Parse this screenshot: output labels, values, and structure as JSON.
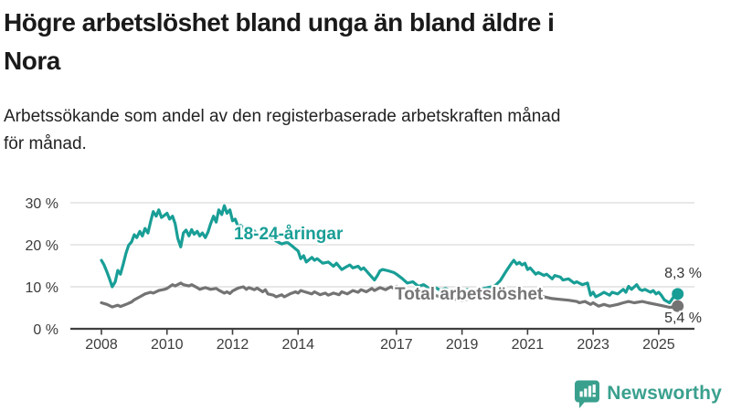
{
  "header": {
    "title_lines": [
      "Högre arbetslöshet bland unga än bland äldre i",
      "Nora"
    ],
    "subtitle_lines": [
      "Arbetssökande som andel av den registerbaserade arbetskraften månad",
      "för månad."
    ]
  },
  "chart_data": {
    "type": "line",
    "title": "Högre arbetslöshet bland unga än bland äldre i Nora",
    "subtitle": "Arbetssökande som andel av den registerbaserade arbetskraften månad för månad.",
    "grid": "horizontal-only",
    "legend_position": "inline-labels",
    "x_axis": {
      "unit": "year-month",
      "range": [
        2007.9,
        2026.05
      ],
      "ticks": [
        {
          "value": 2008,
          "label": "2008"
        },
        {
          "value": 2010,
          "label": "2010"
        },
        {
          "value": 2012,
          "label": "2012"
        },
        {
          "value": 2014,
          "label": "2014"
        },
        {
          "value": 2017,
          "label": "2017"
        },
        {
          "value": 2019,
          "label": "2019"
        },
        {
          "value": 2021,
          "label": "2021"
        },
        {
          "value": 2023,
          "label": "2023"
        },
        {
          "value": 2025,
          "label": "2025"
        }
      ]
    },
    "y_axis": {
      "unit": "%",
      "range": [
        0,
        30
      ],
      "ticks": [
        {
          "value": 0,
          "label": "0 %"
        },
        {
          "value": 10,
          "label": "10 %"
        },
        {
          "value": 20,
          "label": "20 %"
        },
        {
          "value": 30,
          "label": "30 %"
        }
      ]
    },
    "series": [
      {
        "name": "18-24-åringar",
        "color": "#189e96",
        "end_value": 8.3,
        "end_label": "8,3 %",
        "points": [
          [
            2008.0,
            16.3
          ],
          [
            2008.08,
            15.2
          ],
          [
            2008.17,
            13.5
          ],
          [
            2008.25,
            11.8
          ],
          [
            2008.33,
            10.0
          ],
          [
            2008.42,
            11.2
          ],
          [
            2008.5,
            13.9
          ],
          [
            2008.58,
            13.0
          ],
          [
            2008.67,
            15.5
          ],
          [
            2008.75,
            18.0
          ],
          [
            2008.83,
            19.9
          ],
          [
            2008.92,
            20.7
          ],
          [
            2009.0,
            22.4
          ],
          [
            2009.08,
            21.7
          ],
          [
            2009.17,
            23.2
          ],
          [
            2009.25,
            22.1
          ],
          [
            2009.33,
            23.9
          ],
          [
            2009.42,
            22.8
          ],
          [
            2009.5,
            25.5
          ],
          [
            2009.58,
            27.9
          ],
          [
            2009.67,
            26.8
          ],
          [
            2009.75,
            28.3
          ],
          [
            2009.83,
            26.5
          ],
          [
            2009.92,
            27.0
          ],
          [
            2010.0,
            27.5
          ],
          [
            2010.08,
            26.1
          ],
          [
            2010.17,
            26.8
          ],
          [
            2010.25,
            25.0
          ],
          [
            2010.33,
            21.5
          ],
          [
            2010.42,
            19.5
          ],
          [
            2010.5,
            22.8
          ],
          [
            2010.58,
            23.5
          ],
          [
            2010.67,
            22.1
          ],
          [
            2010.75,
            23.6
          ],
          [
            2010.83,
            22.5
          ],
          [
            2010.92,
            23.2
          ],
          [
            2011.0,
            22.1
          ],
          [
            2011.08,
            22.8
          ],
          [
            2011.17,
            21.7
          ],
          [
            2011.25,
            23.0
          ],
          [
            2011.33,
            25.0
          ],
          [
            2011.42,
            26.8
          ],
          [
            2011.5,
            25.4
          ],
          [
            2011.58,
            28.3
          ],
          [
            2011.67,
            27.2
          ],
          [
            2011.75,
            29.3
          ],
          [
            2011.83,
            27.5
          ],
          [
            2011.92,
            28.3
          ],
          [
            2012.0,
            25.7
          ],
          [
            2012.08,
            26.1
          ],
          [
            2012.17,
            24.3
          ],
          [
            2012.25,
            24.6
          ],
          [
            2012.33,
            24.0
          ],
          [
            2012.42,
            23.4
          ],
          [
            2012.5,
            23.8
          ],
          [
            2012.58,
            22.9
          ],
          [
            2012.67,
            23.3
          ],
          [
            2012.75,
            22.4
          ],
          [
            2012.83,
            22.8
          ],
          [
            2012.92,
            21.9
          ],
          [
            2013.0,
            21.3
          ],
          [
            2013.17,
            21.8
          ],
          [
            2013.33,
            20.9
          ],
          [
            2013.5,
            20.2
          ],
          [
            2013.67,
            20.6
          ],
          [
            2013.83,
            19.6
          ],
          [
            2014.0,
            18.5
          ],
          [
            2014.08,
            16.7
          ],
          [
            2014.17,
            17.4
          ],
          [
            2014.25,
            15.9
          ],
          [
            2014.42,
            17.0
          ],
          [
            2014.5,
            16.3
          ],
          [
            2014.58,
            16.7
          ],
          [
            2014.75,
            15.6
          ],
          [
            2014.92,
            15.9
          ],
          [
            2015.08,
            14.9
          ],
          [
            2015.17,
            15.6
          ],
          [
            2015.33,
            14.1
          ],
          [
            2015.5,
            14.9
          ],
          [
            2015.58,
            15.2
          ],
          [
            2015.67,
            14.5
          ],
          [
            2015.83,
            14.9
          ],
          [
            2015.92,
            14.1
          ],
          [
            2016.0,
            14.5
          ],
          [
            2016.08,
            13.8
          ],
          [
            2016.17,
            13.0
          ],
          [
            2016.33,
            11.6
          ],
          [
            2016.42,
            12.7
          ],
          [
            2016.5,
            13.8
          ],
          [
            2016.58,
            14.1
          ],
          [
            2016.75,
            13.8
          ],
          [
            2016.92,
            13.4
          ],
          [
            2017.0,
            13.0
          ],
          [
            2017.17,
            12.0
          ],
          [
            2017.33,
            10.9
          ],
          [
            2017.5,
            11.2
          ],
          [
            2017.67,
            10.1
          ],
          [
            2017.83,
            10.5
          ],
          [
            2018.0,
            9.6
          ],
          [
            2018.17,
            9.9
          ],
          [
            2018.33,
            9.2
          ],
          [
            2018.5,
            9.6
          ],
          [
            2018.67,
            8.9
          ],
          [
            2018.83,
            9.3
          ],
          [
            2019.0,
            9.0
          ],
          [
            2019.17,
            9.4
          ],
          [
            2019.33,
            8.8
          ],
          [
            2019.5,
            9.2
          ],
          [
            2019.67,
            9.6
          ],
          [
            2019.83,
            9.9
          ],
          [
            2020.0,
            10.2
          ],
          [
            2020.17,
            11.5
          ],
          [
            2020.33,
            13.5
          ],
          [
            2020.5,
            15.5
          ],
          [
            2020.58,
            16.3
          ],
          [
            2020.67,
            15.4
          ],
          [
            2020.75,
            15.8
          ],
          [
            2020.83,
            15.2
          ],
          [
            2020.92,
            15.6
          ],
          [
            2021.0,
            14.1
          ],
          [
            2021.08,
            14.5
          ],
          [
            2021.25,
            13.0
          ],
          [
            2021.33,
            13.4
          ],
          [
            2021.5,
            12.7
          ],
          [
            2021.58,
            13.0
          ],
          [
            2021.75,
            11.9
          ],
          [
            2021.83,
            12.7
          ],
          [
            2022.0,
            12.3
          ],
          [
            2022.08,
            11.6
          ],
          [
            2022.25,
            11.9
          ],
          [
            2022.42,
            10.9
          ],
          [
            2022.5,
            11.2
          ],
          [
            2022.67,
            10.5
          ],
          [
            2022.83,
            10.9
          ],
          [
            2022.92,
            8.0
          ],
          [
            2023.0,
            8.7
          ],
          [
            2023.08,
            7.6
          ],
          [
            2023.25,
            8.3
          ],
          [
            2023.33,
            8.7
          ],
          [
            2023.5,
            8.0
          ],
          [
            2023.58,
            8.7
          ],
          [
            2023.75,
            8.3
          ],
          [
            2023.92,
            9.4
          ],
          [
            2024.0,
            8.7
          ],
          [
            2024.08,
            10.1
          ],
          [
            2024.17,
            9.4
          ],
          [
            2024.33,
            10.5
          ],
          [
            2024.42,
            9.4
          ],
          [
            2024.5,
            9.1
          ],
          [
            2024.58,
            9.4
          ],
          [
            2024.75,
            8.7
          ],
          [
            2024.83,
            9.1
          ],
          [
            2024.92,
            8.3
          ],
          [
            2025.0,
            8.7
          ],
          [
            2025.08,
            8.0
          ],
          [
            2025.17,
            6.9
          ],
          [
            2025.33,
            6.2
          ],
          [
            2025.42,
            7.2
          ],
          [
            2025.5,
            8.0
          ],
          [
            2025.58,
            8.3
          ]
        ]
      },
      {
        "name": "Total arbetslöshet",
        "color": "#737373",
        "end_value": 5.4,
        "end_label": "5,4 %",
        "points": [
          [
            2008.0,
            6.2
          ],
          [
            2008.17,
            5.8
          ],
          [
            2008.33,
            5.2
          ],
          [
            2008.5,
            5.6
          ],
          [
            2008.58,
            5.3
          ],
          [
            2008.75,
            5.8
          ],
          [
            2008.92,
            6.4
          ],
          [
            2009.0,
            6.9
          ],
          [
            2009.17,
            7.6
          ],
          [
            2009.33,
            8.3
          ],
          [
            2009.5,
            8.7
          ],
          [
            2009.58,
            8.5
          ],
          [
            2009.75,
            9.1
          ],
          [
            2009.92,
            9.4
          ],
          [
            2010.0,
            9.6
          ],
          [
            2010.17,
            10.5
          ],
          [
            2010.25,
            10.2
          ],
          [
            2010.42,
            10.9
          ],
          [
            2010.5,
            10.5
          ],
          [
            2010.67,
            10.2
          ],
          [
            2010.75,
            10.5
          ],
          [
            2010.92,
            9.8
          ],
          [
            2011.0,
            9.4
          ],
          [
            2011.17,
            9.8
          ],
          [
            2011.33,
            9.4
          ],
          [
            2011.5,
            9.6
          ],
          [
            2011.58,
            9.2
          ],
          [
            2011.75,
            8.5
          ],
          [
            2011.83,
            8.8
          ],
          [
            2011.92,
            8.4
          ],
          [
            2012.0,
            9.0
          ],
          [
            2012.17,
            9.7
          ],
          [
            2012.33,
            10.0
          ],
          [
            2012.42,
            9.4
          ],
          [
            2012.5,
            9.8
          ],
          [
            2012.67,
            9.3
          ],
          [
            2012.75,
            9.7
          ],
          [
            2012.92,
            8.8
          ],
          [
            2013.0,
            9.3
          ],
          [
            2013.08,
            8.3
          ],
          [
            2013.25,
            8.0
          ],
          [
            2013.33,
            7.6
          ],
          [
            2013.5,
            8.1
          ],
          [
            2013.58,
            7.6
          ],
          [
            2013.75,
            8.3
          ],
          [
            2013.92,
            8.8
          ],
          [
            2014.0,
            8.5
          ],
          [
            2014.08,
            9.1
          ],
          [
            2014.25,
            8.7
          ],
          [
            2014.42,
            8.3
          ],
          [
            2014.5,
            8.8
          ],
          [
            2014.67,
            8.1
          ],
          [
            2014.83,
            8.5
          ],
          [
            2014.92,
            8.0
          ],
          [
            2015.08,
            8.5
          ],
          [
            2015.25,
            8.1
          ],
          [
            2015.33,
            8.8
          ],
          [
            2015.5,
            8.3
          ],
          [
            2015.67,
            9.1
          ],
          [
            2015.83,
            8.7
          ],
          [
            2015.92,
            9.3
          ],
          [
            2016.08,
            8.8
          ],
          [
            2016.25,
            9.6
          ],
          [
            2016.33,
            9.1
          ],
          [
            2016.5,
            9.8
          ],
          [
            2016.67,
            9.3
          ],
          [
            2016.83,
            10.0
          ],
          [
            2016.92,
            9.6
          ],
          [
            2017.0,
            10.1
          ],
          [
            2017.17,
            9.6
          ],
          [
            2017.33,
            9.1
          ],
          [
            2017.5,
            8.7
          ],
          [
            2017.67,
            8.2
          ],
          [
            2017.83,
            8.0
          ],
          [
            2018.0,
            8.3
          ],
          [
            2018.25,
            7.8
          ],
          [
            2018.5,
            7.3
          ],
          [
            2018.75,
            7.0
          ],
          [
            2019.0,
            6.8
          ],
          [
            2019.25,
            7.1
          ],
          [
            2019.5,
            7.4
          ],
          [
            2019.75,
            7.7
          ],
          [
            2020.0,
            8.0
          ],
          [
            2020.25,
            8.8
          ],
          [
            2020.5,
            9.2
          ],
          [
            2020.75,
            8.9
          ],
          [
            2021.0,
            8.5
          ],
          [
            2021.25,
            8.0
          ],
          [
            2021.5,
            7.6
          ],
          [
            2021.75,
            7.2
          ],
          [
            2022.0,
            7.0
          ],
          [
            2022.25,
            6.8
          ],
          [
            2022.5,
            6.5
          ],
          [
            2022.58,
            6.2
          ],
          [
            2022.75,
            6.5
          ],
          [
            2022.92,
            5.8
          ],
          [
            2023.0,
            6.2
          ],
          [
            2023.17,
            5.4
          ],
          [
            2023.33,
            5.8
          ],
          [
            2023.5,
            5.4
          ],
          [
            2023.75,
            5.8
          ],
          [
            2023.92,
            6.2
          ],
          [
            2024.08,
            6.5
          ],
          [
            2024.25,
            6.2
          ],
          [
            2024.5,
            6.5
          ],
          [
            2024.67,
            6.2
          ],
          [
            2024.92,
            5.8
          ],
          [
            2025.17,
            5.4
          ],
          [
            2025.33,
            5.1
          ],
          [
            2025.5,
            5.2
          ],
          [
            2025.58,
            5.4
          ]
        ]
      }
    ]
  },
  "branding": {
    "logo_text": "Newsworthy",
    "logo_icon": "bar-chart-speech-bubble-icon",
    "brand_color": "#3aa08e"
  },
  "colors": {
    "young_series": "#189e96",
    "total_series": "#737373",
    "axis": "#3f3f3f",
    "grid": "#d9d9d9"
  }
}
